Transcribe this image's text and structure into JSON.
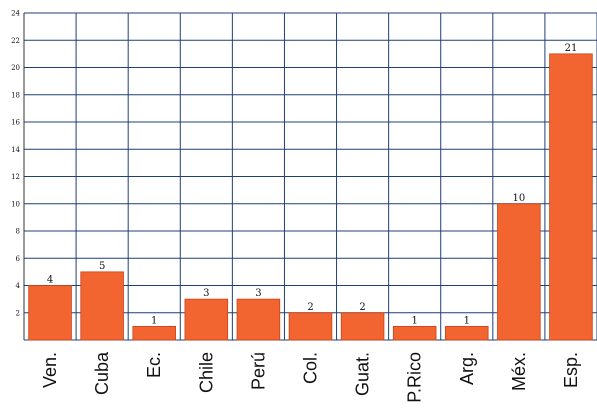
{
  "chart_data": {
    "type": "bar",
    "title": "",
    "xlabel": "",
    "ylabel": "",
    "categories": [
      "Ven.",
      "Cuba",
      "Ec.",
      "Chile",
      "Perú",
      "Col.",
      "Guat.",
      "P.Rico",
      "Arg.",
      "Méx.",
      "Esp."
    ],
    "values": [
      4,
      5,
      1,
      3,
      3,
      2,
      2,
      1,
      1,
      10,
      21
    ],
    "value_labels": [
      "4",
      "5",
      "1",
      "3",
      "3",
      "2",
      "2",
      "1",
      "1",
      "10",
      "21"
    ],
    "ylim": [
      0,
      24
    ],
    "yticks": [
      "2",
      "4",
      "6",
      "8",
      "10",
      "12",
      "14",
      "16",
      "18",
      "20",
      "22",
      "24"
    ],
    "grid": true,
    "legend": "none",
    "colors": {
      "bar": "#f26430",
      "bar_edge": "#c7441a",
      "grid": "#1f3f78",
      "background": "#ffffff"
    }
  }
}
